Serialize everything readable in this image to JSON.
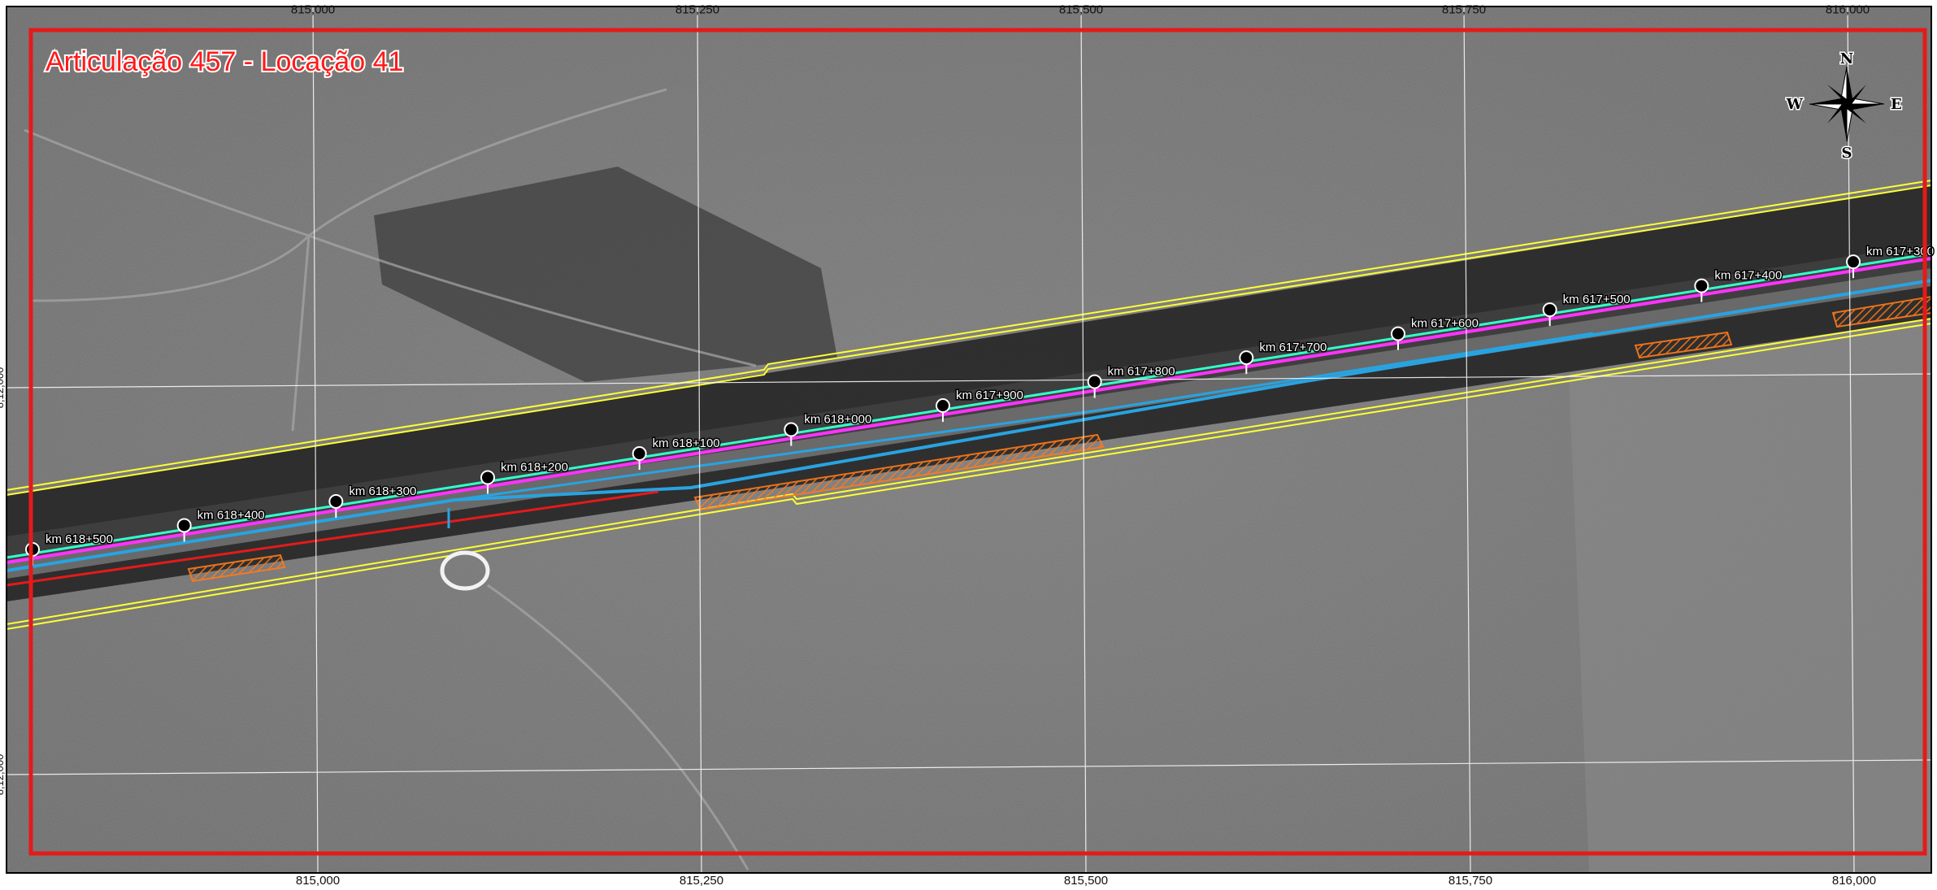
{
  "map": {
    "title": "Articulação 457 - Locação 41",
    "grid_x_labels": [
      "815,000",
      "815,250",
      "815,500",
      "815,750",
      "816,000"
    ],
    "grid_y_labels": [
      "8,12,000",
      "8,12,000"
    ],
    "markers": [
      {
        "label": "km 618+500"
      },
      {
        "label": "km 618+400"
      },
      {
        "label": "km 618+300"
      },
      {
        "label": "km 618+200"
      },
      {
        "label": "km 618+100"
      },
      {
        "label": "km 618+000"
      },
      {
        "label": "km 617+900"
      },
      {
        "label": "km 617+800"
      },
      {
        "label": "km 617+700"
      },
      {
        "label": "km 617+600"
      },
      {
        "label": "km 617+500"
      },
      {
        "label": "km 617+400"
      },
      {
        "label": "km 617+300"
      }
    ],
    "compass": {
      "n": "N",
      "s": "S",
      "e": "E",
      "w": "W"
    },
    "colors": {
      "frame": "#e51a1a",
      "boundary": "#ffff33",
      "track_green": "#33ffcc",
      "track_magenta": "#ff33ff",
      "track_blue": "#29a3e0",
      "track_red": "#e51a1a",
      "hatch": "#ff7a1a"
    }
  }
}
